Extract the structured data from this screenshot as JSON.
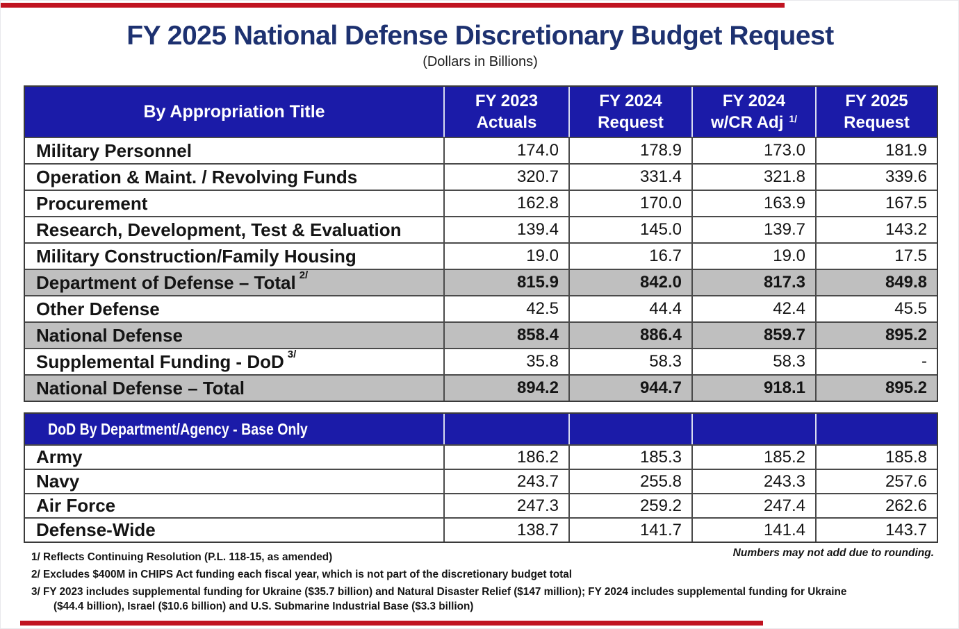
{
  "title": "FY 2025 National Defense Discretionary Budget Request",
  "subtitle": "(Dollars in Billions)",
  "colors": {
    "header_blue": "#1b1ba8",
    "title_navy": "#1d3170",
    "total_row_gray": "#bfbfbf",
    "accent_red": "#c01320"
  },
  "appropriation_table": {
    "label_header": "By Appropriation Title",
    "column_headers": [
      {
        "line1": "FY 2023",
        "line2": "Actuals",
        "sup": ""
      },
      {
        "line1": "FY 2024",
        "line2": "Request",
        "sup": ""
      },
      {
        "line1": "FY 2024",
        "line2": "w/CR Adj",
        "sup": "1/"
      },
      {
        "line1": "FY 2025",
        "line2": "Request",
        "sup": ""
      }
    ],
    "rows": [
      {
        "label": "Military Personnel",
        "sup": "",
        "values": [
          "174.0",
          "178.9",
          "173.0",
          "181.9"
        ],
        "gray": false
      },
      {
        "label": "Operation & Maint. / Revolving Funds",
        "sup": "",
        "values": [
          "320.7",
          "331.4",
          "321.8",
          "339.6"
        ],
        "gray": false
      },
      {
        "label": "Procurement",
        "sup": "",
        "values": [
          "162.8",
          "170.0",
          "163.9",
          "167.5"
        ],
        "gray": false
      },
      {
        "label": "Research, Development, Test & Evaluation",
        "sup": "",
        "values": [
          "139.4",
          "145.0",
          "139.7",
          "143.2"
        ],
        "gray": false
      },
      {
        "label": "Military Construction/Family Housing",
        "sup": "",
        "values": [
          "19.0",
          "16.7",
          "19.0",
          "17.5"
        ],
        "gray": false
      },
      {
        "label": "Department of Defense – Total",
        "sup": "2/",
        "values": [
          "815.9",
          "842.0",
          "817.3",
          "849.8"
        ],
        "gray": true
      },
      {
        "label": "Other Defense",
        "sup": "",
        "values": [
          "42.5",
          "44.4",
          "42.4",
          "45.5"
        ],
        "gray": false
      },
      {
        "label": "National Defense",
        "sup": "",
        "values": [
          "858.4",
          "886.4",
          "859.7",
          "895.2"
        ],
        "gray": true
      },
      {
        "label": "Supplemental Funding - DoD",
        "sup": "3/",
        "values": [
          "35.8",
          "58.3",
          "58.3",
          "-"
        ],
        "gray": false
      },
      {
        "label": "National Defense – Total",
        "sup": "",
        "values": [
          "894.2",
          "944.7",
          "918.1",
          "895.2"
        ],
        "gray": true
      }
    ]
  },
  "department_table": {
    "label_header": "DoD By Department/Agency - Base Only",
    "rows": [
      {
        "label": "Army",
        "sup": "",
        "values": [
          "186.2",
          "185.3",
          "185.2",
          "185.8"
        ],
        "gray": false
      },
      {
        "label": "Navy",
        "sup": "",
        "values": [
          "243.7",
          "255.8",
          "243.3",
          "257.6"
        ],
        "gray": false
      },
      {
        "label": "Air Force",
        "sup": "",
        "values": [
          "247.3",
          "259.2",
          "247.4",
          "262.6"
        ],
        "gray": false
      },
      {
        "label": "Defense-Wide",
        "sup": "",
        "values": [
          "138.7",
          "141.7",
          "141.4",
          "143.7"
        ],
        "gray": false
      }
    ]
  },
  "footnotes": {
    "fn1": "1/ Reflects Continuing Resolution (P.L. 118-15, as amended)",
    "fn2": "2/ Excludes $400M in CHIPS Act funding each fiscal year, which is not part of the discretionary budget total",
    "fn3": "3/ FY 2023 includes supplemental funding for Ukraine ($35.7 billion) and Natural Disaster Relief ($147 million); FY 2024 includes supplemental funding for Ukraine",
    "fn3_cont": "($44.4 billion), Israel ($10.6 billion) and U.S. Submarine Industrial Base ($3.3 billion)",
    "rounding_note": "Numbers may not add due to rounding."
  }
}
